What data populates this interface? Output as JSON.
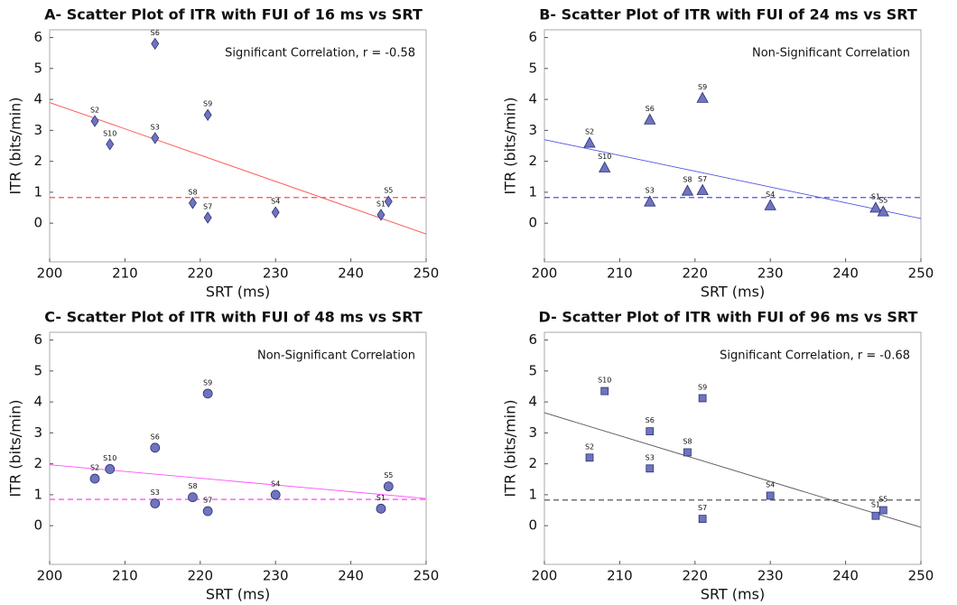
{
  "chart_data": [
    {
      "type": "scatter",
      "title": "A- Scatter Plot of ITR with FUI of 16 ms vs SRT",
      "xlabel": "SRT (ms)",
      "ylabel": "ITR (bits/min)",
      "annotation": "Significant Correlation, r = -0.58",
      "xlim": [
        200,
        250
      ],
      "xticks": [
        200,
        210,
        220,
        230,
        240,
        250
      ],
      "ylim": [
        -1.25,
        6.25
      ],
      "yticks": [
        0,
        1,
        2,
        3,
        4,
        5,
        6
      ],
      "marker": "diamond",
      "marker_color": "#6f74c0",
      "x": [
        206,
        208,
        214,
        214,
        221,
        219,
        221,
        230,
        244,
        245
      ],
      "y": [
        3.3,
        2.55,
        5.8,
        2.75,
        3.5,
        0.65,
        0.18,
        0.35,
        0.27,
        0.7
      ],
      "point_labels": [
        "S2",
        "S10",
        "S6",
        "S3",
        "S9",
        "S8",
        "S7",
        "S4",
        "S1",
        "S5"
      ],
      "fit_line": {
        "x": [
          200,
          250
        ],
        "y": [
          3.9,
          -0.35
        ],
        "color": "#ff4d4d"
      },
      "threshold": {
        "value": 0.83,
        "color": "#ff4d4d"
      }
    },
    {
      "type": "scatter",
      "title": "B- Scatter Plot of ITR with FUI of 24 ms vs SRT",
      "xlabel": "SRT (ms)",
      "ylabel": "ITR (bits/min)",
      "annotation": "Non-Significant Correlation",
      "xlim": [
        200,
        250
      ],
      "xticks": [
        200,
        210,
        220,
        230,
        240,
        250
      ],
      "ylim": [
        -1.25,
        6.25
      ],
      "yticks": [
        0,
        1,
        2,
        3,
        4,
        5,
        6
      ],
      "marker": "triangle",
      "marker_color": "#6f74c0",
      "x": [
        206,
        208,
        214,
        214,
        221,
        219,
        221,
        230,
        244,
        245
      ],
      "y": [
        2.6,
        1.8,
        3.35,
        0.7,
        4.05,
        1.05,
        1.07,
        0.58,
        0.5,
        0.38
      ],
      "point_labels": [
        "S2",
        "S10",
        "S6",
        "S3",
        "S9",
        "S8",
        "S7",
        "S4",
        "S1",
        "S5"
      ],
      "fit_line": {
        "x": [
          200,
          250
        ],
        "y": [
          2.7,
          0.15
        ],
        "color": "#5050e0"
      },
      "threshold": {
        "value": 0.83,
        "color": "#5050e0"
      }
    },
    {
      "type": "scatter",
      "title": "C- Scatter Plot of ITR with FUI of 48 ms vs SRT",
      "xlabel": "SRT (ms)",
      "ylabel": "ITR (bits/min)",
      "annotation": "Non-Significant Correlation",
      "xlim": [
        200,
        250
      ],
      "xticks": [
        200,
        210,
        220,
        230,
        240,
        250
      ],
      "ylim": [
        -1.25,
        6.25
      ],
      "yticks": [
        0,
        1,
        2,
        3,
        4,
        5,
        6
      ],
      "marker": "circle",
      "marker_color": "#6f74c0",
      "x": [
        206,
        208,
        214,
        214,
        221,
        219,
        221,
        230,
        244,
        245
      ],
      "y": [
        1.52,
        1.83,
        2.52,
        0.72,
        4.27,
        0.92,
        0.47,
        1.0,
        0.55,
        1.27
      ],
      "point_labels": [
        "S2",
        "S10",
        "S6",
        "S3",
        "S9",
        "S8",
        "S7",
        "S4",
        "S1",
        "S5"
      ],
      "fit_line": {
        "x": [
          200,
          250
        ],
        "y": [
          1.97,
          0.88
        ],
        "color": "#ff50ff"
      },
      "threshold": {
        "value": 0.85,
        "color": "#ff50ff"
      }
    },
    {
      "type": "scatter",
      "title": "D- Scatter Plot of ITR with FUI of 96 ms vs SRT",
      "xlabel": "SRT (ms)",
      "ylabel": "ITR (bits/min)",
      "annotation": "Significant Correlation, r = -0.68",
      "xlim": [
        200,
        250
      ],
      "xticks": [
        200,
        210,
        220,
        230,
        240,
        250
      ],
      "ylim": [
        -1.25,
        6.25
      ],
      "yticks": [
        0,
        1,
        2,
        3,
        4,
        5,
        6
      ],
      "marker": "square",
      "marker_color": "#6f74c0",
      "x": [
        206,
        208,
        214,
        214,
        221,
        219,
        221,
        230,
        244,
        245
      ],
      "y": [
        2.2,
        4.35,
        3.05,
        1.85,
        4.12,
        2.37,
        0.22,
        0.97,
        0.32,
        0.5
      ],
      "point_labels": [
        "S2",
        "S10",
        "S6",
        "S3",
        "S9",
        "S8",
        "S7",
        "S4",
        "S1",
        "S5"
      ],
      "fit_line": {
        "x": [
          200,
          250
        ],
        "y": [
          3.65,
          -0.05
        ],
        "color": "#555555"
      },
      "threshold": {
        "value": 0.83,
        "color": "#555555"
      }
    }
  ]
}
